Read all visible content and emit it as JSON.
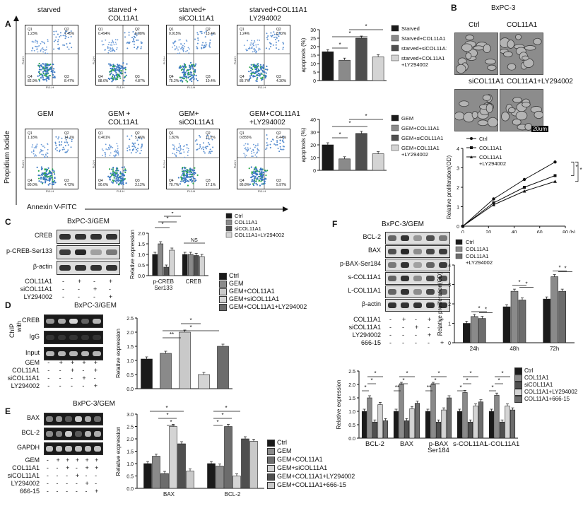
{
  "panels": {
    "A": "A",
    "B": "B",
    "C": "C",
    "D": "D",
    "E": "E",
    "F": "F"
  },
  "flow": {
    "row1": [
      {
        "title": "starved",
        "q": [
          "1.23%",
          "7.45%",
          "82.9%",
          "8.47%"
        ]
      },
      {
        "title": "starved +\nCOL11A1",
        "q": [
          "0.494%",
          "6.08%",
          "88.6%",
          "4.87%"
        ]
      },
      {
        "title": "starved+\nsiCOL11A1",
        "q": [
          "0.915%",
          "13.4%",
          "75.2%",
          "10.4%"
        ]
      },
      {
        "title": "starved+COL11A1\nLY294002",
        "q": [
          "1.24%",
          "8.72%",
          "85.7%",
          "4.30%"
        ]
      }
    ],
    "row2": [
      {
        "title": "GEM",
        "q": [
          "1.18%",
          "14.1%",
          "80.0%",
          "4.72%"
        ]
      },
      {
        "title": "GEM +\nCOL11A1",
        "q": [
          "0.461%",
          "5.46%",
          "90.0%",
          "3.12%"
        ]
      },
      {
        "title": "GEM+\nsiCOL11A1",
        "q": [
          "1.82%",
          "11.2%",
          "70.7%",
          "17.1%"
        ]
      },
      {
        "title": "GEM+COL11A1\n+LY294002",
        "q": [
          "0.855%",
          "6.44%",
          "86.8%",
          "5.97%"
        ]
      }
    ],
    "quad_labels": [
      "Q1",
      "Q2",
      "Q4",
      "Q3"
    ],
    "xaxis": "FL1-H",
    "yaxis": "FL2-H",
    "big_xlabel": "Annexin V-FITC",
    "big_ylabel": "Propidium Iodide"
  },
  "colors": {
    "black": "#1a1a1a",
    "g1": "#8a8a8a",
    "g2": "#4f4f4f",
    "g3": "#d4d4d4",
    "g4": "#c9c9c9",
    "g5": "#6c6c6c"
  },
  "B": {
    "title": "BxPC-3",
    "imgs": [
      "Ctrl",
      "COL11A1",
      "siCOL11A1",
      "COL11A1+LY294002"
    ],
    "scale": "20um",
    "prolif_ylabel": "Relative proliferation(OD)",
    "xunit": "(h)",
    "legend": [
      "Ctrl",
      "COL11A1",
      "COL11A1\n+LY294002"
    ],
    "star": "*"
  },
  "C": {
    "title": "BxPC-3/GEM",
    "bands": [
      "CREB",
      "p-CREB-Ser133",
      "β-actin"
    ],
    "rows": [
      {
        "label": "COL11A1",
        "v": [
          "-",
          "+",
          "-",
          "+"
        ]
      },
      {
        "label": "siCOL11A1",
        "v": [
          "-",
          "-",
          "+",
          "-"
        ]
      },
      {
        "label": "LY294002",
        "v": [
          "-",
          "-",
          "-",
          "+"
        ]
      }
    ],
    "legend": [
      "Ctrl",
      "COL11A1",
      "siCOL11A1",
      "COL11A1+LY294002"
    ],
    "ylabel": "Relative expression",
    "ns": "NS"
  },
  "Dlegend": [
    "Ctrl",
    "GEM",
    "GEM+COL11A1",
    "GEM+siCOL11A1",
    "GEM+COL11A1+LY294002"
  ],
  "D": {
    "title": "BxPC-3/GEM",
    "chip": "ChIP",
    "with": "with",
    "bands": [
      "CREB",
      "IgG",
      "Input"
    ],
    "rows": [
      {
        "label": "GEM",
        "v": [
          "-",
          "+",
          "+",
          "+",
          "+"
        ]
      },
      {
        "label": "COL11A1",
        "v": [
          "-",
          "-",
          "+",
          "-",
          "+"
        ]
      },
      {
        "label": "siCOL11A1",
        "v": [
          "-",
          "-",
          "-",
          "+",
          "-"
        ]
      },
      {
        "label": "LY294002",
        "v": [
          "-",
          "-",
          "-",
          "-",
          "+"
        ]
      }
    ],
    "ylabel": "Relative expression"
  },
  "E": {
    "title": "BxPC-3/GEM",
    "bands": [
      "BAX",
      "BCL-2",
      "GAPDH"
    ],
    "rows": [
      {
        "label": "GEM",
        "v": [
          "-",
          "+",
          "+",
          "+",
          "+",
          "+"
        ]
      },
      {
        "label": "COL11A1",
        "v": [
          "-",
          "-",
          "+",
          "-",
          "+",
          "+"
        ]
      },
      {
        "label": "siCOL11A1",
        "v": [
          "-",
          "-",
          "-",
          "+",
          "-",
          "-"
        ]
      },
      {
        "label": "LY294002",
        "v": [
          "-",
          "-",
          "-",
          "-",
          "+",
          "-"
        ]
      },
      {
        "label": "666-15",
        "v": [
          "-",
          "-",
          "-",
          "-",
          "-",
          "+"
        ]
      }
    ],
    "legend": [
      "Ctrl",
      "GEM",
      "GEM+COL11A1",
      "GEM+siCOL11A1",
      "GEM+COL11A1+LY294002",
      "GEM+COL11A1+666-15"
    ],
    "ylabel": "Relative expression"
  },
  "F": {
    "title": "BxPC-3/GEM",
    "bands": [
      "BCL-2",
      "BAX",
      "p-BAX-Ser184",
      "s-COL11A1",
      "L-COL11A1",
      "β-actin"
    ],
    "rows": [
      {
        "label": "COL11A1",
        "v": [
          "-",
          "+",
          "-",
          "+",
          "+"
        ]
      },
      {
        "label": "siCOL11A1",
        "v": [
          "-",
          "-",
          "+",
          "-",
          "-"
        ]
      },
      {
        "label": "LY294002",
        "v": [
          "-",
          "-",
          "-",
          "+",
          "-"
        ]
      },
      {
        "label": "666-15",
        "v": [
          "-",
          "-",
          "-",
          "-",
          "+"
        ]
      }
    ],
    "legend": [
      "Ctrl",
      "COL11A1",
      "siCOL11A1",
      "COL11A1+LY294002",
      "COL11A1+666-15"
    ],
    "ylabel": "Relative expression"
  },
  "chart_data": [
    {
      "id": "apopA1",
      "type": "bar",
      "categories": [
        "Starved",
        "Starved+COL11A1",
        "starved+siCOL11A1",
        "starved+COL11A1\n+LY294002"
      ],
      "values": [
        17,
        12,
        25,
        14
      ],
      "ylabel": "apoptosis (%)",
      "ylim": [
        0,
        30
      ],
      "yticks": [
        0,
        5,
        10,
        15,
        20,
        25,
        30
      ],
      "legend": "right",
      "stars": "*"
    },
    {
      "id": "apopA2",
      "type": "bar",
      "categories": [
        "GEM",
        "GEM+COL11A1",
        "GEM+siCOL11A1",
        "GEM+COL11A1\n+LY294002"
      ],
      "values": [
        20,
        9,
        29,
        13
      ],
      "ylabel": "apoptosis (%)",
      "ylim": [
        0,
        40
      ],
      "yticks": [
        0,
        10,
        20,
        30,
        40
      ],
      "legend": "right",
      "stars": "*"
    },
    {
      "id": "prolifB",
      "type": "line",
      "x": [
        0,
        24,
        48,
        72
      ],
      "xticks": [
        0,
        20,
        40,
        60,
        80
      ],
      "series": [
        {
          "name": "Ctrl",
          "values": [
            0,
            1.4,
            2.4,
            3.3
          ]
        },
        {
          "name": "COL11A1",
          "values": [
            0,
            1.2,
            2.0,
            2.6
          ]
        },
        {
          "name": "COL11A1\n+LY294002",
          "values": [
            0,
            1.1,
            1.8,
            2.3
          ]
        }
      ],
      "yticks": [
        0,
        1,
        2,
        3,
        4
      ],
      "ylim": [
        0,
        4
      ],
      "xlim": [
        0,
        80
      ]
    },
    {
      "id": "C",
      "type": "bar",
      "categories": [
        "p-CREB\nSer133",
        "CREB"
      ],
      "series": [
        {
          "name": "Ctrl",
          "values": [
            1.0,
            1.0
          ]
        },
        {
          "name": "COL11A1",
          "values": [
            1.5,
            1.0
          ]
        },
        {
          "name": "siCOL11A1",
          "values": [
            0.4,
            0.95
          ]
        },
        {
          "name": "COL11A1+LY294002",
          "values": [
            1.2,
            0.9
          ]
        }
      ],
      "yticks": [
        0,
        0.5,
        1.0,
        1.5,
        2.0
      ],
      "ylim": [
        0,
        2.0
      ]
    },
    {
      "id": "D",
      "type": "bar",
      "categories": [
        "Ctrl",
        "GEM",
        "GEM+COL11A1",
        "GEM+siCOL11A1",
        "GEM+COL11A1+LY294002"
      ],
      "values": [
        1.05,
        1.25,
        2.0,
        0.5,
        1.5
      ],
      "yticks": [
        0,
        0.5,
        1.0,
        1.5,
        2.0,
        2.5
      ],
      "ylim": [
        0,
        2.5
      ]
    },
    {
      "id": "E",
      "type": "bar",
      "categories": [
        "BAX",
        "BCL-2"
      ],
      "series": [
        {
          "name": "Ctrl",
          "values": [
            1.0,
            1.0
          ]
        },
        {
          "name": "GEM",
          "values": [
            1.3,
            0.9
          ]
        },
        {
          "name": "GEM+COL11A1",
          "values": [
            0.6,
            2.5
          ]
        },
        {
          "name": "GEM+siCOL11A1",
          "values": [
            2.5,
            0.5
          ]
        },
        {
          "name": "GEM+COL11A1+LY294002",
          "values": [
            1.8,
            2.0
          ]
        },
        {
          "name": "GEM+COL11A1+666-15",
          "values": [
            0.7,
            1.9
          ]
        }
      ],
      "yticks": [
        0,
        0.5,
        1.0,
        1.5,
        2.0,
        2.5,
        3.0
      ],
      "ylim": [
        0,
        3.0
      ]
    },
    {
      "id": "Fprolif",
      "type": "bar",
      "categories": [
        "24h",
        "48h",
        "72h"
      ],
      "series": [
        {
          "name": "Ctrl",
          "values": [
            1.0,
            1.85,
            2.25
          ]
        },
        {
          "name": "COL11A1",
          "values": [
            1.35,
            2.65,
            3.4
          ]
        },
        {
          "name": "COL11A1\n+LY294002",
          "values": [
            1.25,
            2.2,
            2.65
          ]
        }
      ],
      "yticks": [
        0,
        1,
        2,
        3,
        4
      ],
      "ylim": [
        0,
        4
      ],
      "ylabel": "Relative proliferation(OD)"
    },
    {
      "id": "Fexpr",
      "type": "bar",
      "categories": [
        "BCL-2",
        "BAX",
        "p-BAX\nSer184",
        "s-COL11A1",
        "L-COL11A1"
      ],
      "series": [
        {
          "name": "Ctrl",
          "values": [
            1.0,
            1.0,
            1.0,
            1.0,
            1.0
          ]
        },
        {
          "name": "COL11A1",
          "values": [
            1.5,
            2.0,
            2.0,
            1.7,
            1.6
          ]
        },
        {
          "name": "siCOL11A1",
          "values": [
            0.6,
            0.65,
            0.6,
            0.6,
            0.6
          ]
        },
        {
          "name": "COL11A1+LY294002",
          "values": [
            1.25,
            1.1,
            1.05,
            1.2,
            1.2
          ]
        },
        {
          "name": "COL11A1+666-15",
          "values": [
            0.65,
            1.3,
            1.5,
            1.35,
            1.05
          ]
        }
      ],
      "yticks": [
        0,
        0.5,
        1.0,
        1.5,
        2.0,
        2.5
      ],
      "ylim": [
        0,
        2.5
      ]
    }
  ]
}
